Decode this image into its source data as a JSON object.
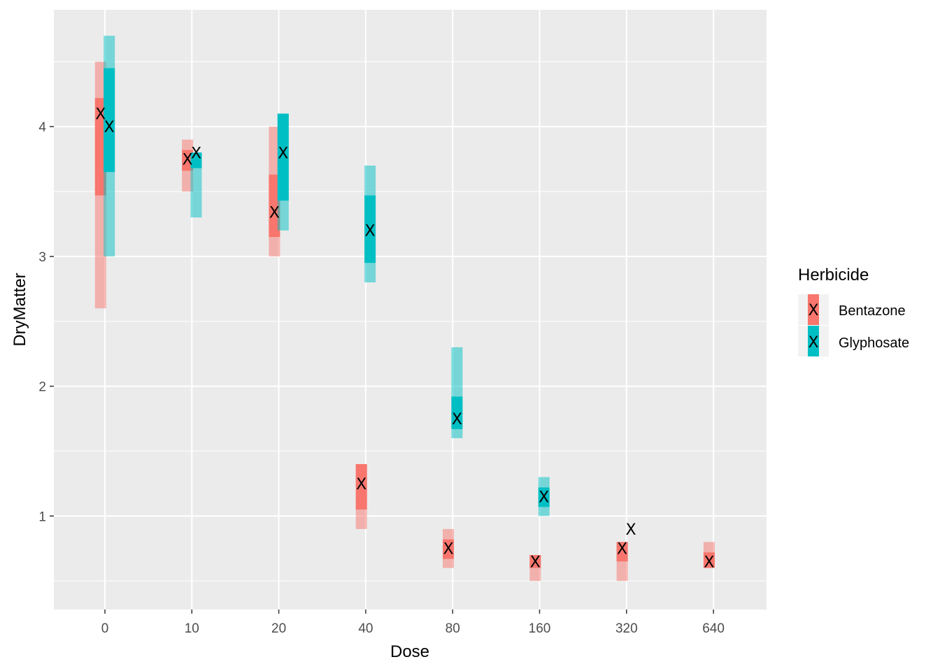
{
  "chart_data": {
    "type": "crossbar",
    "xlabel": "Dose",
    "ylabel": "DryMatter",
    "x_categories": [
      "0",
      "10",
      "20",
      "40",
      "80",
      "160",
      "320",
      "640"
    ],
    "y_ticks": [
      "1",
      "2",
      "3",
      "4"
    ],
    "ylim": [
      0.28,
      4.9
    ],
    "grid": true,
    "legend": {
      "title": "Herbicide",
      "placement": "right",
      "entries": [
        "Bentazone",
        "Glyphosate"
      ]
    },
    "marker_glyph": "X",
    "colors": {
      "Bentazone": "#F8766D",
      "Glyphosate": "#00BFC4",
      "panel": "#EBEBEB",
      "grid": "#FFFFFF"
    },
    "series": [
      {
        "name": "Bentazone",
        "dose": [
          "0",
          "10",
          "20",
          "40",
          "80",
          "160",
          "320",
          "640"
        ],
        "mean": [
          4.1,
          3.75,
          3.34,
          1.25,
          0.75,
          0.65,
          0.75,
          0.65
        ],
        "min": [
          2.6,
          3.5,
          3.0,
          0.9,
          0.6,
          0.5,
          0.5,
          0.6
        ],
        "max": [
          4.5,
          3.9,
          4.0,
          1.4,
          0.9,
          0.7,
          0.8,
          0.8
        ],
        "q1": [
          3.47,
          3.66,
          3.15,
          1.05,
          0.67,
          0.6,
          0.65,
          0.6
        ],
        "q3": [
          4.22,
          3.82,
          3.63,
          1.4,
          0.82,
          0.7,
          0.8,
          0.72
        ]
      },
      {
        "name": "Glyphosate",
        "dose": [
          "0",
          "10",
          "20",
          "40",
          "80",
          "160",
          "320"
        ],
        "mean": [
          4.0,
          3.8,
          3.8,
          3.2,
          1.75,
          1.15,
          0.9
        ],
        "min": [
          3.0,
          3.3,
          3.2,
          2.8,
          1.6,
          1.0,
          0.9
        ],
        "max": [
          4.7,
          3.8,
          4.1,
          3.7,
          2.3,
          1.3,
          0.9
        ],
        "q1": [
          3.65,
          3.68,
          3.43,
          2.95,
          1.67,
          1.07,
          0.9
        ],
        "q3": [
          4.45,
          3.8,
          4.1,
          3.47,
          1.92,
          1.22,
          0.9
        ]
      }
    ]
  }
}
